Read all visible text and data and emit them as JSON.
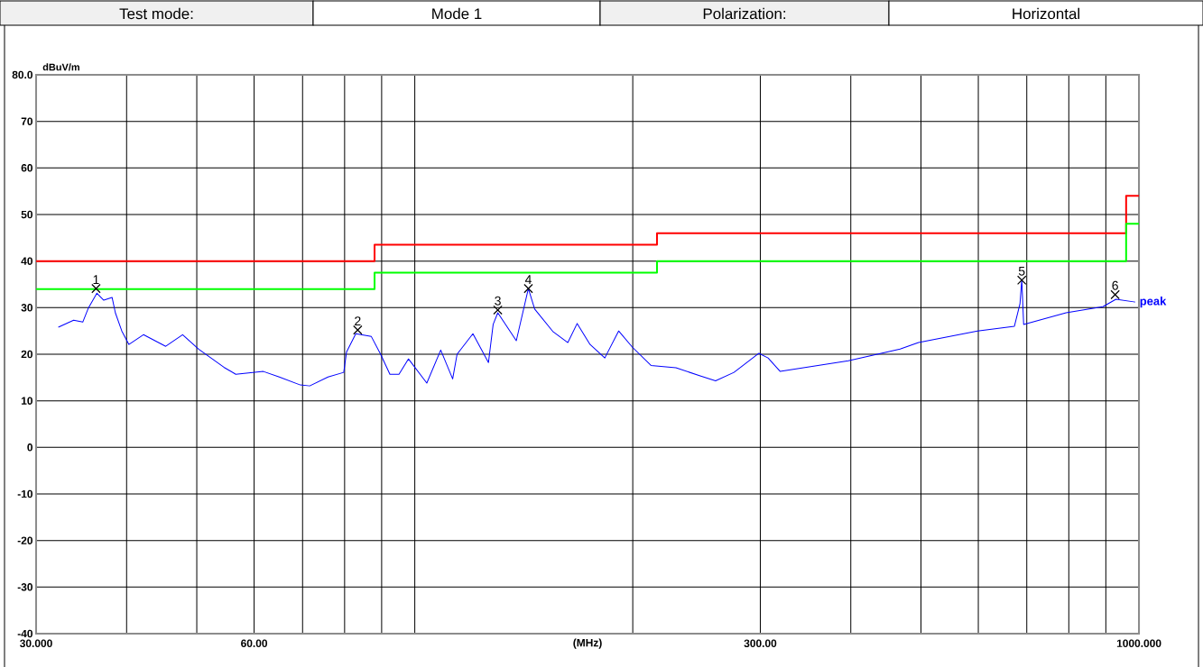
{
  "chart_data": {
    "type": "line",
    "log": "x",
    "grid": true,
    "xlabel": "(MHz)",
    "ylabel": "dBuV/m",
    "xlim": [
      30,
      1000
    ],
    "ylim": [
      -40,
      80
    ],
    "xticks": [
      {
        "value": 30,
        "label": "30.000"
      },
      {
        "value": 40,
        "label": null
      },
      {
        "value": 50,
        "label": null
      },
      {
        "value": 60,
        "label": "60.00"
      },
      {
        "value": 70,
        "label": null
      },
      {
        "value": 80,
        "label": null
      },
      {
        "value": 90,
        "label": null
      },
      {
        "value": 100,
        "label": null
      },
      {
        "value": 200,
        "label": null
      },
      {
        "value": 300,
        "label": "300.00"
      },
      {
        "value": 400,
        "label": null
      },
      {
        "value": 500,
        "label": null
      },
      {
        "value": 600,
        "label": null
      },
      {
        "value": 700,
        "label": null
      },
      {
        "value": 800,
        "label": null
      },
      {
        "value": 900,
        "label": null
      },
      {
        "value": 1000,
        "label": "1000.000"
      }
    ],
    "yticks": [
      -40,
      -30,
      -20,
      -10,
      0,
      10,
      20,
      30,
      40,
      50,
      60,
      70,
      {
        "value": 80,
        "label": "80.0"
      }
    ],
    "series": [
      {
        "type": "step",
        "color": "#ff0000",
        "x": [
          30,
          88,
          216,
          960,
          1000
        ],
        "values": [
          40,
          43.5,
          46,
          54,
          54
        ]
      },
      {
        "type": "step",
        "color": "#00ff00",
        "x": [
          30,
          88,
          216,
          960,
          1000
        ],
        "values": [
          34,
          37.5,
          40,
          48,
          48
        ]
      },
      {
        "name": "peak",
        "type": "line",
        "color": "#0000ff",
        "x": [
          32.2,
          33.8,
          34.8,
          35.4,
          36.4,
          37.2,
          38.2,
          38.6,
          39.4,
          40.3,
          42.2,
          45.3,
          47.8,
          50.3,
          54.5,
          56.6,
          61.8,
          65.0,
          69.5,
          71.6,
          75.9,
          79.8,
          80.5,
          82.9,
          87.1,
          89.7,
          92.4,
          95.1,
          98.0,
          103.9,
          108.6,
          112.8,
          114.4,
          120.3,
          126.4,
          128.3,
          130.2,
          138.1,
          143.5,
          146.4,
          155.3,
          162.7,
          167.6,
          174.6,
          183.0,
          191.2,
          199.8,
          211.9,
          229.4,
          248.3,
          260.2,
          275.9,
          298.7,
          307.5,
          319.6,
          397.0,
          467.9,
          496.1,
          598.5,
          673.0,
          685.0,
          689.0,
          693.1,
          793.2,
          891.8,
          929.4,
          988.3
        ],
        "values": [
          25.8,
          27.3,
          26.9,
          29.8,
          33.1,
          31.6,
          32.2,
          28.9,
          25.0,
          22.1,
          24.2,
          21.7,
          24.2,
          21.1,
          17.2,
          15.7,
          16.3,
          15.1,
          13.4,
          13.2,
          15.1,
          16.1,
          20.5,
          24.4,
          23.8,
          20.0,
          15.7,
          15.7,
          19.0,
          13.8,
          20.9,
          14.7,
          20.0,
          24.4,
          18.2,
          26.4,
          28.9,
          22.9,
          34.1,
          29.7,
          24.8,
          22.5,
          26.6,
          22.1,
          19.2,
          25.0,
          21.5,
          17.6,
          17.1,
          15.3,
          14.3,
          16.1,
          20.2,
          19.2,
          16.3,
          18.6,
          21.1,
          22.5,
          25.0,
          26.0,
          30.8,
          36.0,
          26.4,
          28.9,
          30.2,
          31.8,
          31.2
        ]
      }
    ],
    "annotations": [
      "Test mode:",
      "Mode 1",
      "Polarization:",
      "Horizontal",
      {
        "text": "1",
        "x": 36.3,
        "y": 34.1
      },
      {
        "text": "2",
        "x": 83.4,
        "y": 25.2
      },
      {
        "text": "3",
        "x": 130.2,
        "y": 29.5
      },
      {
        "text": "4",
        "x": 143.5,
        "y": 34.1
      },
      {
        "text": "5",
        "x": 689.0,
        "y": 35.9
      },
      {
        "text": "6",
        "x": 927.0,
        "y": 32.8
      }
    ]
  }
}
